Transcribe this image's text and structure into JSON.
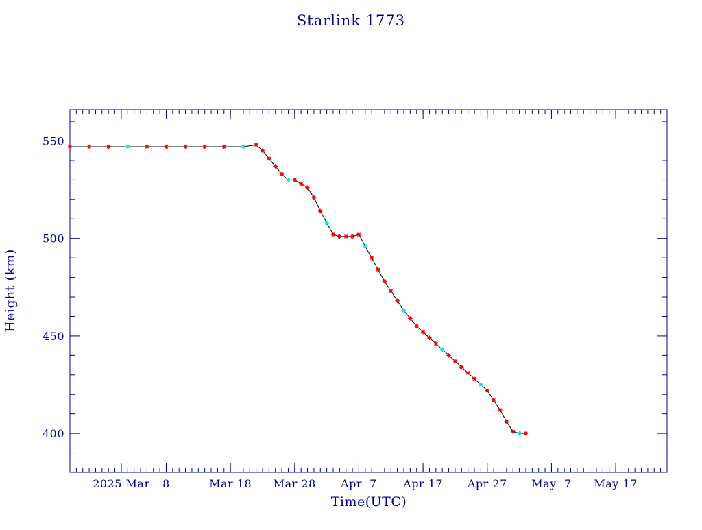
{
  "chart_data": {
    "type": "line",
    "title": "Starlink 1773",
    "xlabel": "Time(UTC)",
    "ylabel": "Height (km)",
    "xlim": [
      "2025-02-21",
      "2025-05-25"
    ],
    "ylim": [
      380,
      566
    ],
    "x_ticks": [
      {
        "date": "2025-03-01",
        "label": "2025 Mar"
      },
      {
        "date": "2025-03-08",
        "label": "8"
      },
      {
        "date": "2025-03-18",
        "label": "Mar 18"
      },
      {
        "date": "2025-03-28",
        "label": "Mar 28"
      },
      {
        "date": "2025-04-07",
        "label": "Apr  7"
      },
      {
        "date": "2025-04-17",
        "label": "Apr 17"
      },
      {
        "date": "2025-04-27",
        "label": "Apr 27"
      },
      {
        "date": "2025-05-07",
        "label": "May  7"
      },
      {
        "date": "2025-05-17",
        "label": "May 17"
      }
    ],
    "y_ticks": [
      400,
      450,
      500,
      550
    ],
    "grid": false,
    "colors": {
      "axes": "#00008b",
      "line": "#000000",
      "marker": "#ee0000",
      "marker_alt": "#00e5ee"
    },
    "series": [
      {
        "marker": "star",
        "x": [
          "2025-02-21",
          "2025-02-24",
          "2025-02-27",
          "2025-03-02",
          "2025-03-05",
          "2025-03-08",
          "2025-03-11",
          "2025-03-14",
          "2025-03-17",
          "2025-03-20",
          "2025-03-22",
          "2025-03-23",
          "2025-03-24",
          "2025-03-25",
          "2025-03-26",
          "2025-03-27",
          "2025-03-28",
          "2025-03-29",
          "2025-03-30",
          "2025-03-31",
          "2025-04-01",
          "2025-04-02",
          "2025-04-03",
          "2025-04-04",
          "2025-04-05",
          "2025-04-06",
          "2025-04-07",
          "2025-04-08",
          "2025-04-09",
          "2025-04-10",
          "2025-04-11",
          "2025-04-12",
          "2025-04-13",
          "2025-04-14",
          "2025-04-15",
          "2025-04-16",
          "2025-04-17",
          "2025-04-18",
          "2025-04-19",
          "2025-04-20",
          "2025-04-21",
          "2025-04-22",
          "2025-04-23",
          "2025-04-24",
          "2025-04-25",
          "2025-04-26",
          "2025-04-27",
          "2025-04-28",
          "2025-04-29",
          "2025-04-30",
          "2025-05-01",
          "2025-05-02",
          "2025-05-03"
        ],
        "y": [
          547,
          547,
          547,
          547,
          547,
          547,
          547,
          547,
          547,
          547,
          548,
          545,
          541,
          537,
          533,
          530,
          530,
          528,
          526,
          521,
          514,
          508,
          502,
          501,
          501,
          501,
          502,
          496,
          490,
          484,
          478,
          473,
          468,
          463,
          459,
          455,
          452,
          449,
          446,
          443,
          440,
          437,
          434,
          431,
          428,
          425,
          422,
          417,
          412,
          406,
          401,
          400,
          400
        ]
      }
    ]
  }
}
